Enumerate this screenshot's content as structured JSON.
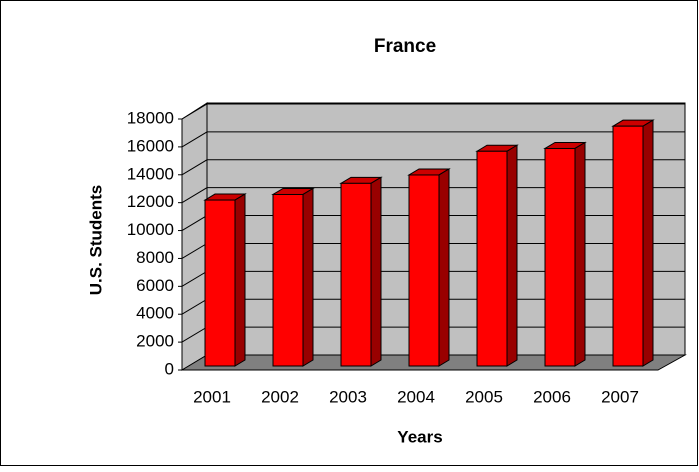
{
  "chart_data": {
    "type": "bar",
    "title": "France",
    "x_label": "Years",
    "y_label": "U.S. Students",
    "categories": [
      "2001",
      "2002",
      "2003",
      "2004",
      "2005",
      "2006",
      "2007"
    ],
    "values": [
      11900,
      12300,
      13100,
      13700,
      15400,
      15600,
      17200
    ],
    "color": "#ff0000",
    "ylim": [
      0,
      18000
    ],
    "yticks": [
      0,
      2000,
      4000,
      6000,
      8000,
      10000,
      12000,
      14000,
      16000,
      18000
    ],
    "grid": true
  }
}
